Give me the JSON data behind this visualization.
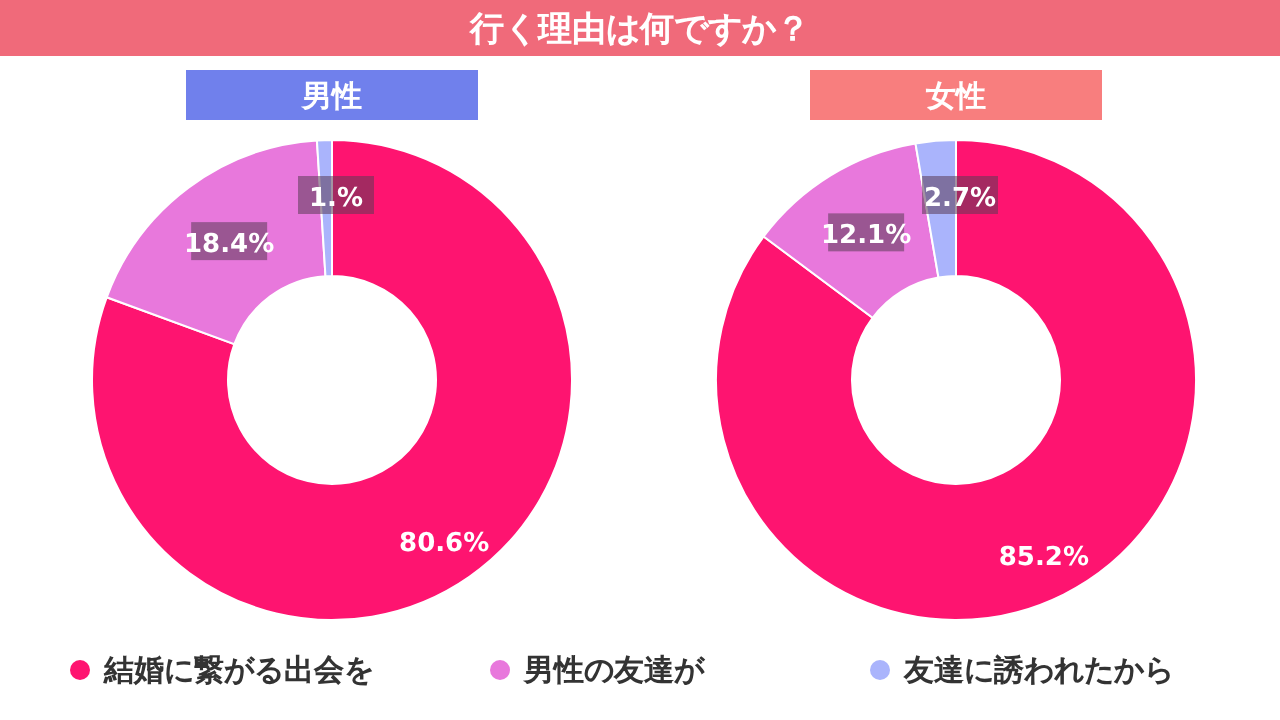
{
  "chart_data": [
    {
      "type": "donut",
      "title": "男性",
      "annotations": [
        "行く理由は何ですか？"
      ],
      "categories": [
        "結婚に繋がる出会を",
        "男性の友達が",
        "友達に誘われたから"
      ],
      "values": [
        80.6,
        18.4,
        1.0
      ],
      "value_labels": [
        "80.6%",
        "18.4%",
        "1.%"
      ],
      "colors": [
        "#fe1470",
        "#e878dc",
        "#aab4fc"
      ],
      "legend": "bottom"
    },
    {
      "type": "donut",
      "title": "女性",
      "values": [
        85.2,
        12.1,
        2.7
      ],
      "value_labels": [
        "85.2%",
        "12.1%",
        "2.7%"
      ],
      "colors": [
        "#fe1470",
        "#e878dc",
        "#aab4fc"
      ]
    }
  ]
}
